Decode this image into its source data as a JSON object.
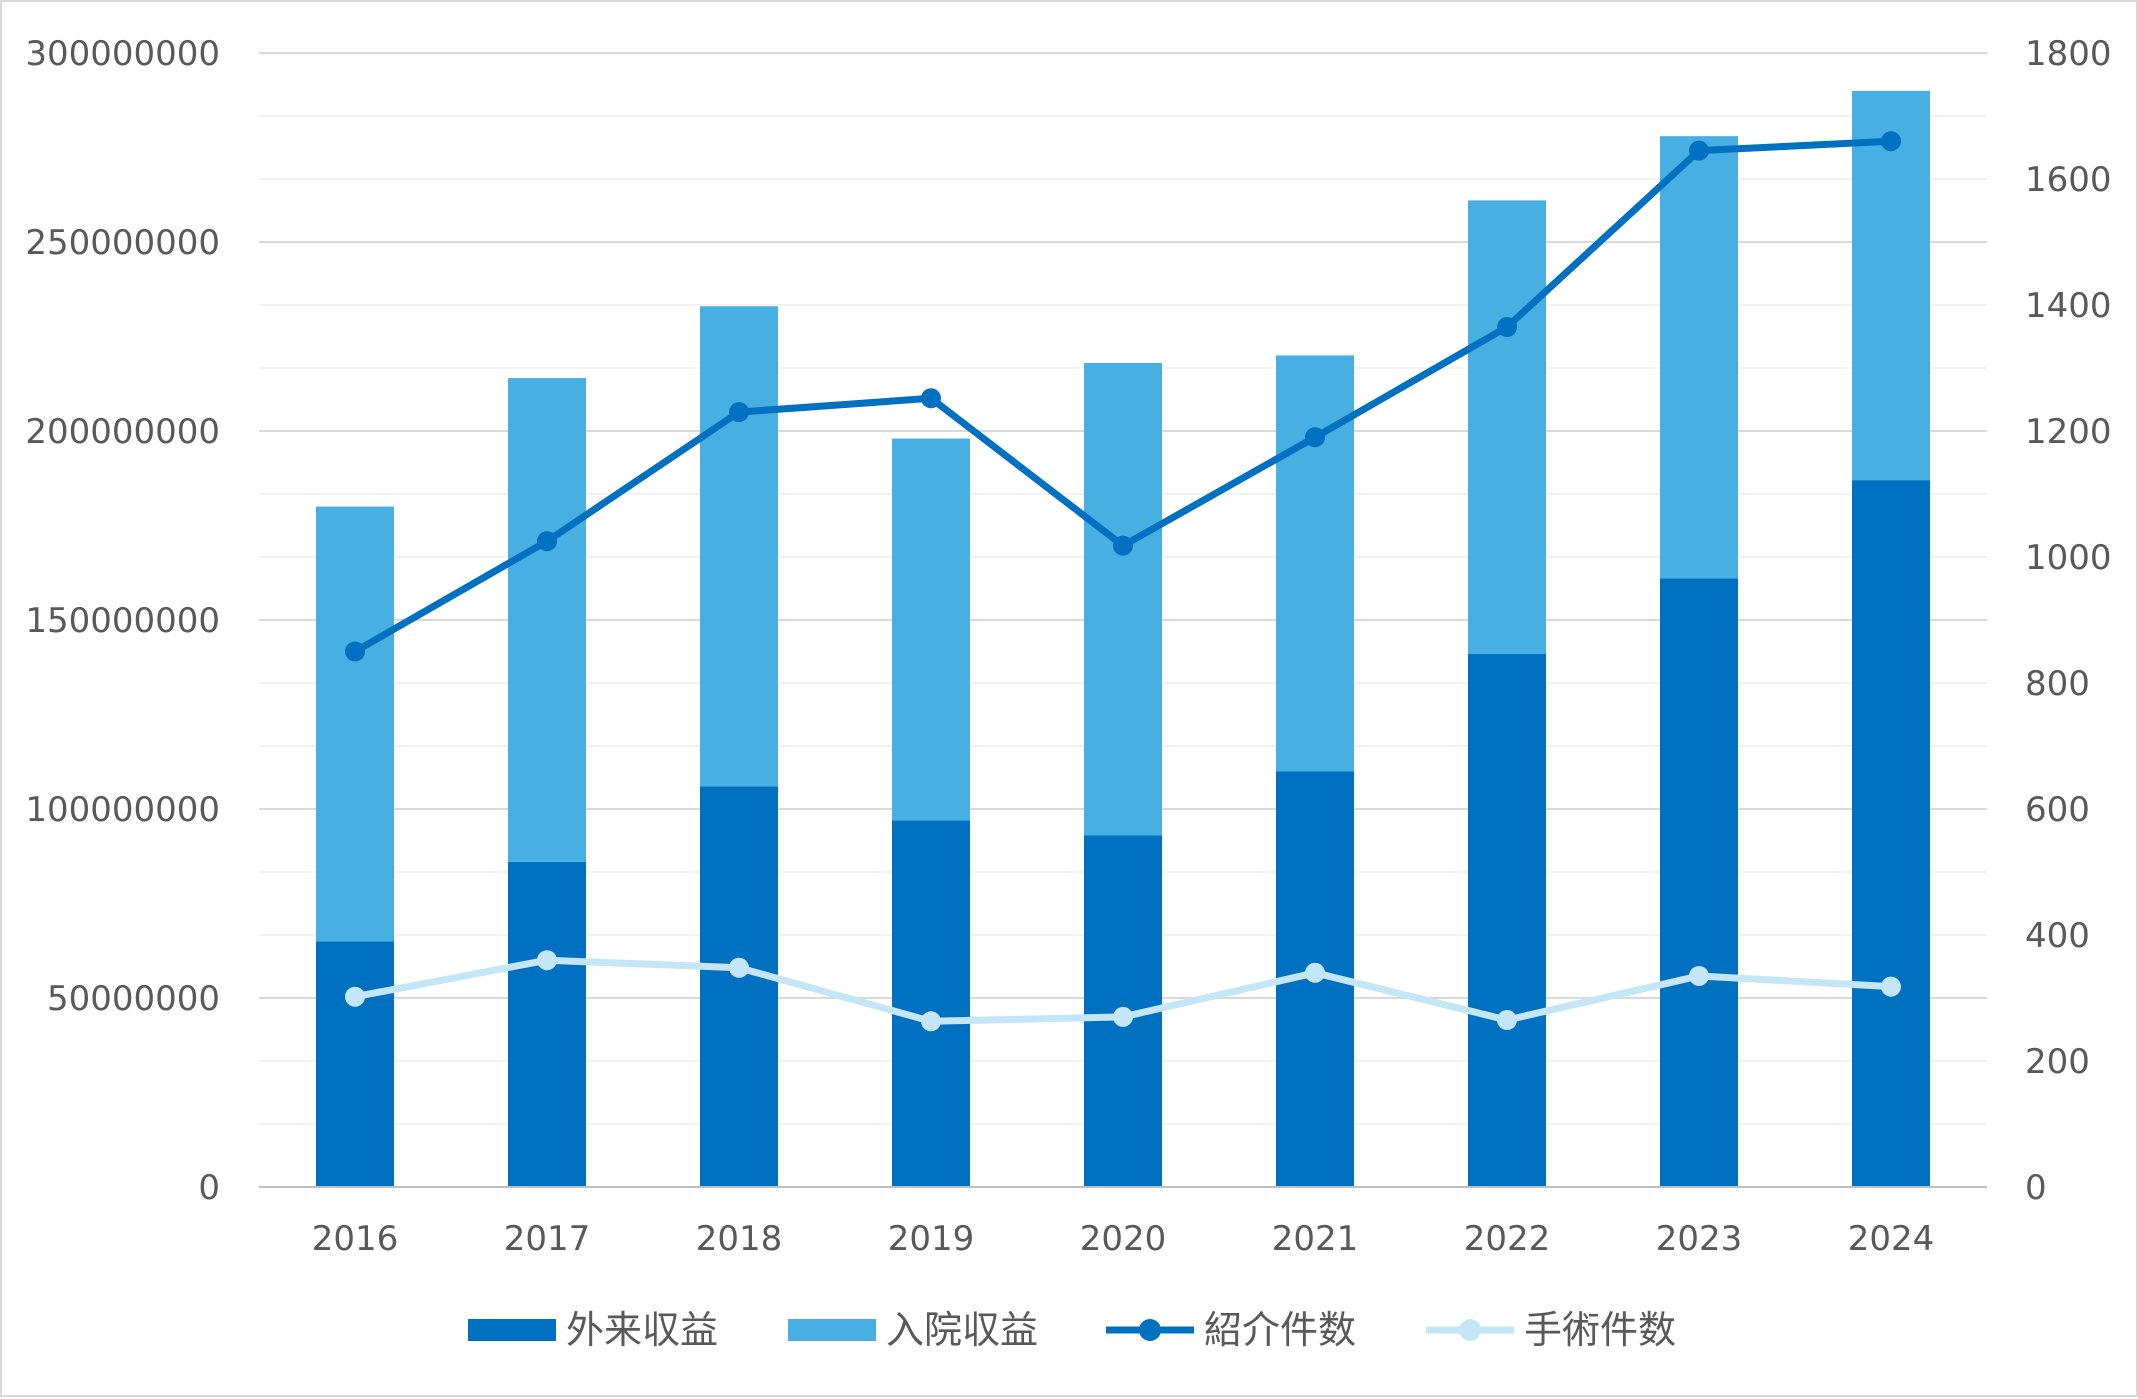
{
  "chart_data": {
    "type": "bar",
    "stacked": true,
    "categories": [
      "2016",
      "2017",
      "2018",
      "2019",
      "2020",
      "2021",
      "2022",
      "2023",
      "2024"
    ],
    "series": [
      {
        "name": "外来収益",
        "type": "bar",
        "axis": "left",
        "color": "#0070C0",
        "values": [
          65000000,
          86000000,
          106000000,
          97000000,
          93000000,
          110000000,
          141000000,
          161000000,
          187000000
        ]
      },
      {
        "name": "入院収益",
        "type": "bar",
        "axis": "left",
        "color": "#47AFE1",
        "values": [
          115000000,
          128000000,
          127000000,
          101000000,
          125000000,
          110000000,
          120000000,
          117000000,
          103000000
        ]
      },
      {
        "name": "紹介件数",
        "type": "line",
        "axis": "right",
        "color": "#0070C0",
        "values": [
          850,
          1025,
          1230,
          1252,
          1018,
          1190,
          1365,
          1645,
          1660
        ]
      },
      {
        "name": "手術件数",
        "type": "line",
        "axis": "right",
        "color": "#C5E6F6",
        "values": [
          302,
          360,
          348,
          263,
          270,
          340,
          265,
          335,
          318
        ]
      }
    ],
    "y_left": {
      "min": 0,
      "max": 300000000,
      "ticks": [
        "0",
        "50000000",
        "100000000",
        "150000000",
        "200000000",
        "250000000",
        "300000000"
      ]
    },
    "y_right": {
      "min": 0,
      "max": 1800,
      "ticks": [
        "0",
        "200",
        "400",
        "600",
        "800",
        "1000",
        "1200",
        "1400",
        "1600",
        "1800"
      ]
    },
    "grid": true,
    "legend": "bottom"
  }
}
